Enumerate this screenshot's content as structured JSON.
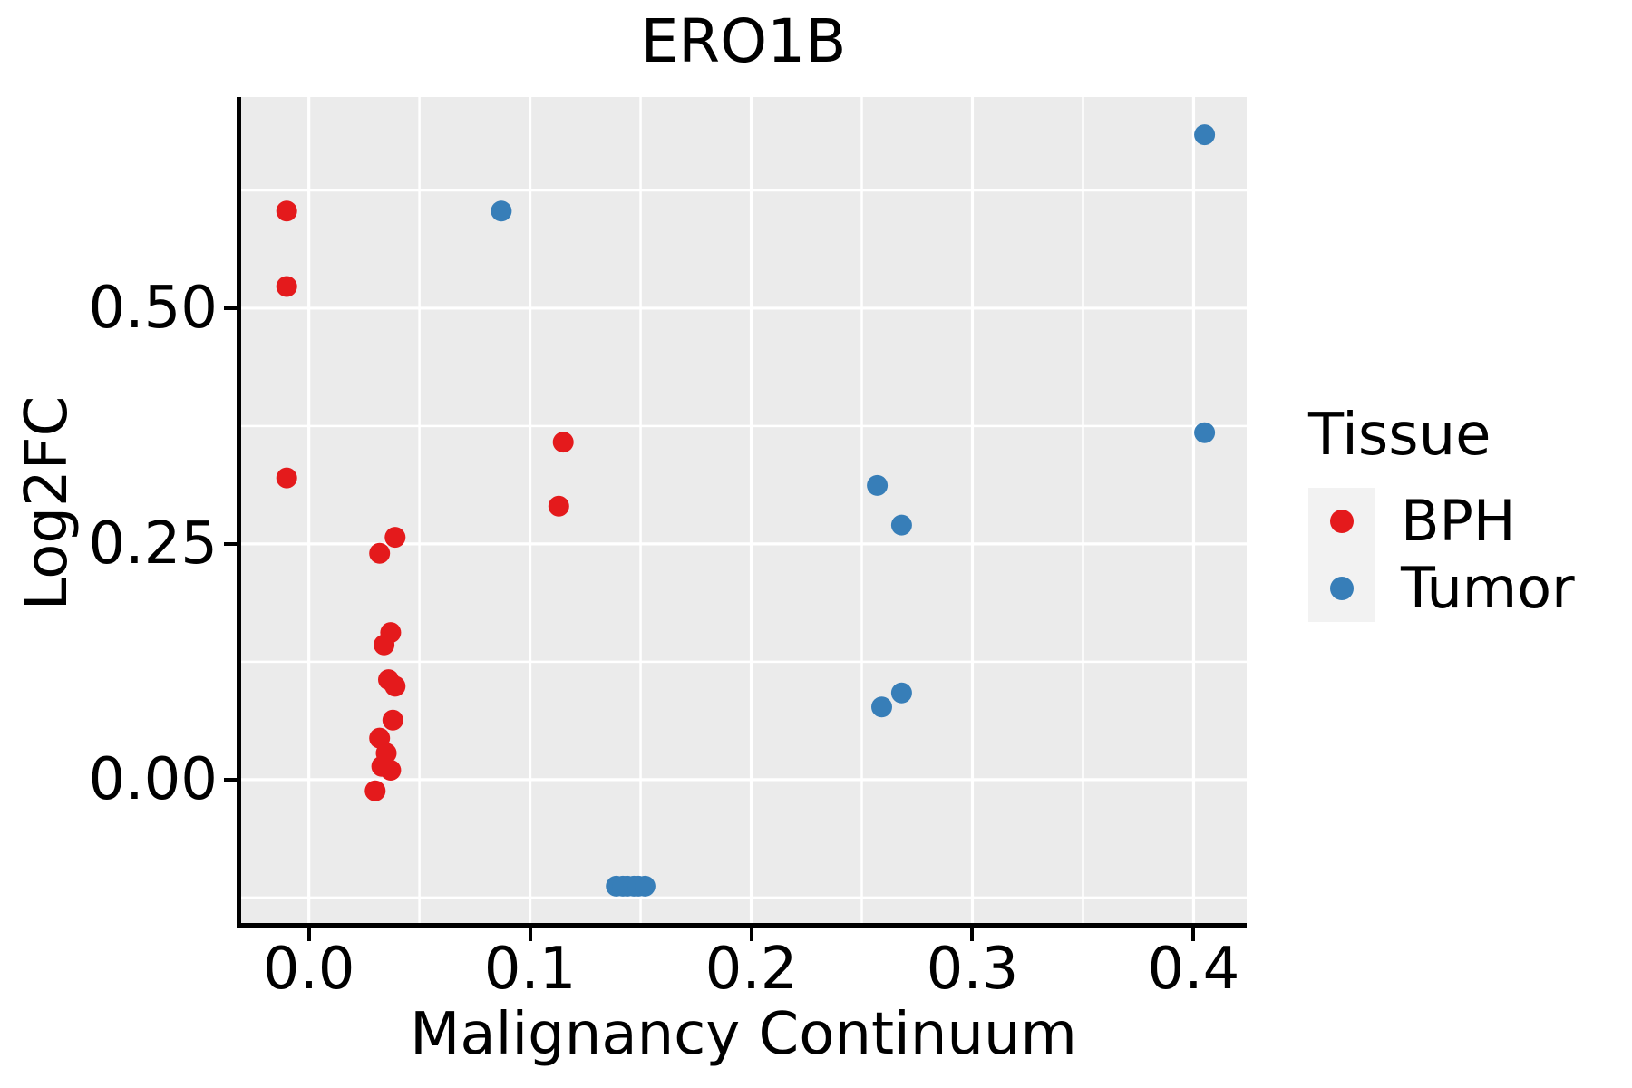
{
  "title": "ERO1B",
  "axes": {
    "x": {
      "label": "Malignancy Continuum",
      "ticks": [
        0.0,
        0.1,
        0.2,
        0.3,
        0.4
      ],
      "tick_labels": [
        "0.0",
        "0.1",
        "0.2",
        "0.3",
        "0.4"
      ],
      "minor_gridlines": [
        0.05,
        0.15,
        0.25,
        0.35
      ]
    },
    "y": {
      "label": "Log2FC",
      "ticks": [
        0.0,
        0.25,
        0.5
      ],
      "tick_labels": [
        "0.00",
        "0.25",
        "0.50"
      ],
      "minor_gridlines": [
        -0.125,
        0.125,
        0.375,
        0.625
      ]
    }
  },
  "legend": {
    "title": "Tissue",
    "entries": [
      {
        "label": "BPH",
        "color": "#E41A1C"
      },
      {
        "label": "Tumor",
        "color": "#377EB8"
      }
    ]
  },
  "style": {
    "panel_background": "#EBEBEB",
    "grid_color": "#FFFFFF",
    "legend_key_background": "#F2F2F2",
    "axis_color": "#000000"
  },
  "chart_data": {
    "type": "scatter",
    "title": "ERO1B",
    "xlabel": "Malignancy Continuum",
    "ylabel": "Log2FC",
    "xlim": [
      -0.031,
      0.424
    ],
    "ylim": [
      -0.154,
      0.724
    ],
    "grid": true,
    "legend_position": "right",
    "point_radius_px": 11.5,
    "series": [
      {
        "name": "BPH",
        "color": "#E41A1C",
        "points": [
          [
            -0.01,
            0.603
          ],
          [
            -0.01,
            0.523
          ],
          [
            -0.01,
            0.32
          ],
          [
            0.115,
            0.358
          ],
          [
            0.113,
            0.29
          ],
          [
            0.039,
            0.257
          ],
          [
            0.032,
            0.24
          ],
          [
            0.037,
            0.156
          ],
          [
            0.034,
            0.143
          ],
          [
            0.036,
            0.106
          ],
          [
            0.039,
            0.099
          ],
          [
            0.038,
            0.063
          ],
          [
            0.032,
            0.044
          ],
          [
            0.035,
            0.028
          ],
          [
            0.033,
            0.014
          ],
          [
            0.037,
            0.01
          ],
          [
            0.03,
            -0.012
          ]
        ]
      },
      {
        "name": "Tumor",
        "color": "#377EB8",
        "points": [
          [
            0.087,
            0.603
          ],
          [
            0.405,
            0.684
          ],
          [
            0.405,
            0.368
          ],
          [
            0.257,
            0.312
          ],
          [
            0.268,
            0.27
          ],
          [
            0.268,
            0.092
          ],
          [
            0.259,
            0.077
          ],
          [
            0.139,
            -0.113
          ],
          [
            0.142,
            -0.113
          ],
          [
            0.144,
            -0.113
          ],
          [
            0.147,
            -0.113
          ],
          [
            0.149,
            -0.113
          ],
          [
            0.152,
            -0.113
          ]
        ]
      }
    ]
  }
}
